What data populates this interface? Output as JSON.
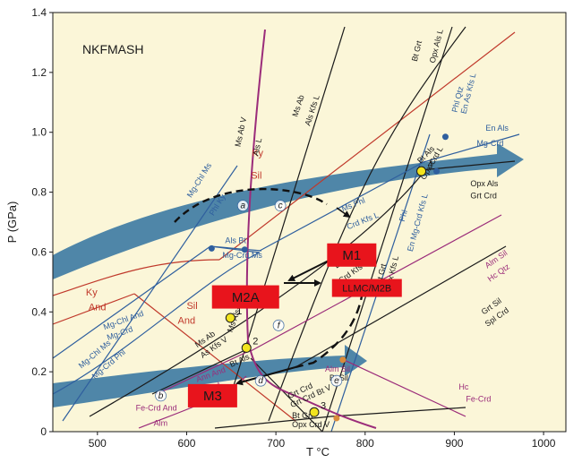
{
  "chart_data": {
    "type": "line",
    "title": "NKFMASH",
    "xlabel": "T °C",
    "ylabel": "P (GPa)",
    "xlim": [
      450,
      1025
    ],
    "ylim": [
      0,
      1.4
    ],
    "x_ticks": [
      "500",
      "600",
      "700",
      "800",
      "900",
      "1000"
    ],
    "y_ticks": [
      "0",
      "0.2",
      "0.4",
      "0.6",
      "0.8",
      "1.0",
      "1.2",
      "1.4"
    ],
    "grid": false,
    "colors": {
      "background": "#fbf6d8",
      "black": "#1a1a1a",
      "blue": "#2f5f9e",
      "red": "#c0392b",
      "magenta": "#9b2c7a",
      "arrow_band": "#4f86a8",
      "box": "#e8141c",
      "marker": "#f2e41e"
    },
    "fields": [
      {
        "name": "Ky",
        "color": "#c0392b",
        "x": 673,
        "y": 0.92
      },
      {
        "name": "Sil",
        "color": "#c0392b",
        "x": 672,
        "y": 0.845
      },
      {
        "name": "Ky",
        "color": "#c0392b",
        "x": 487,
        "y": 0.455
      },
      {
        "name": "And",
        "color": "#c0392b",
        "x": 490,
        "y": 0.405
      },
      {
        "name": "Sil",
        "color": "#c0392b",
        "x": 600,
        "y": 0.41
      },
      {
        "name": "And",
        "color": "#c0392b",
        "x": 590,
        "y": 0.36
      }
    ],
    "reactions": [
      {
        "label": "Bt Grt",
        "color": "#1a1a1a",
        "x": 858,
        "y": 1.235,
        "angle": -76
      },
      {
        "label": "Opx Als L",
        "color": "#1a1a1a",
        "x": 878,
        "y": 1.23,
        "angle": -76
      },
      {
        "label": "Phl Qtz",
        "color": "#2f5f9e",
        "x": 903,
        "y": 1.065,
        "angle": -76
      },
      {
        "label": "En As Kfs L",
        "color": "#2f5f9e",
        "x": 913,
        "y": 1.06,
        "angle": -76
      },
      {
        "label": "En Als",
        "color": "#2f5f9e",
        "x": 935,
        "y": 1.005,
        "angle": 0
      },
      {
        "label": "Mg-Crd",
        "color": "#2f5f9e",
        "x": 925,
        "y": 0.955,
        "angle": 0
      },
      {
        "label": "Opx Als",
        "color": "#1a1a1a",
        "x": 918,
        "y": 0.82,
        "angle": 0
      },
      {
        "label": "Grt Crd",
        "color": "#1a1a1a",
        "x": 918,
        "y": 0.78,
        "angle": 0
      },
      {
        "label": "Bt Als",
        "color": "#1a1a1a",
        "x": 862,
        "y": 0.895,
        "angle": -45
      },
      {
        "label": "Opx Crd L",
        "color": "#1a1a1a",
        "x": 867,
        "y": 0.84,
        "angle": -60
      },
      {
        "label": "Ms Ab",
        "color": "#1a1a1a",
        "x": 724,
        "y": 1.05,
        "angle": -72
      },
      {
        "label": "Als Kfs L",
        "color": "#1a1a1a",
        "x": 738,
        "y": 1.02,
        "angle": -72
      },
      {
        "label": "Ms Ab V",
        "color": "#1a1a1a",
        "x": 660,
        "y": 0.95,
        "angle": -78
      },
      {
        "label": "Als L",
        "color": "#1a1a1a",
        "x": 680,
        "y": 0.92,
        "angle": -78
      },
      {
        "label": "Ms Phl",
        "color": "#2f5f9e",
        "x": 775,
        "y": 0.735,
        "angle": -22
      },
      {
        "label": "Crd Kfs L",
        "color": "#2f5f9e",
        "x": 781,
        "y": 0.675,
        "angle": -22
      },
      {
        "label": "Mg-Chl Ms",
        "color": "#2f5f9e",
        "x": 605,
        "y": 0.78,
        "angle": -58
      },
      {
        "label": "Phl Ky",
        "color": "#2f5f9e",
        "x": 630,
        "y": 0.72,
        "angle": -58
      },
      {
        "label": "Als Bt",
        "color": "#2f5f9e",
        "x": 643,
        "y": 0.63,
        "angle": 0
      },
      {
        "label": "Mg-Crd Ms",
        "color": "#2f5f9e",
        "x": 640,
        "y": 0.58,
        "angle": 0
      },
      {
        "label": "Bt Sil",
        "color": "#1a1a1a",
        "x": 768,
        "y": 0.545,
        "angle": -35
      },
      {
        "label": "Crd Kfs L",
        "color": "#1a1a1a",
        "x": 773,
        "y": 0.495,
        "angle": -35
      },
      {
        "label": "Phl",
        "color": "#2f5f9e",
        "x": 844,
        "y": 0.7,
        "angle": -75
      },
      {
        "label": "En Mg-Crd Kfs L",
        "color": "#2f5f9e",
        "x": 853,
        "y": 0.6,
        "angle": -75
      },
      {
        "label": "Bt Grt",
        "color": "#1a1a1a",
        "x": 818,
        "y": 0.49,
        "angle": -76
      },
      {
        "label": "Opx Kfs L",
        "color": "#1a1a1a",
        "x": 828,
        "y": 0.47,
        "angle": -76
      },
      {
        "label": "Alm Sil",
        "color": "#9b2c7a",
        "x": 937,
        "y": 0.545,
        "angle": -35
      },
      {
        "label": "Hc Qtz",
        "color": "#9b2c7a",
        "x": 940,
        "y": 0.5,
        "angle": -35
      },
      {
        "label": "Grt Sil",
        "color": "#1a1a1a",
        "x": 933,
        "y": 0.39,
        "angle": -35
      },
      {
        "label": "Spl Crd",
        "color": "#1a1a1a",
        "x": 937,
        "y": 0.35,
        "angle": -35
      },
      {
        "label": "Mg-Chl And",
        "color": "#2f5f9e",
        "x": 508,
        "y": 0.34,
        "angle": -20
      },
      {
        "label": "Mg-Crd",
        "color": "#2f5f9e",
        "x": 512,
        "y": 0.305,
        "angle": -20
      },
      {
        "label": "Mg-Chl Ms",
        "color": "#2f5f9e",
        "x": 482,
        "y": 0.21,
        "angle": -40
      },
      {
        "label": "Mg-Crd Phl",
        "color": "#2f5f9e",
        "x": 497,
        "y": 0.175,
        "angle": -40
      },
      {
        "label": "Ms Ab",
        "color": "#1a1a1a",
        "x": 612,
        "y": 0.28,
        "angle": -35
      },
      {
        "label": "As Kfs V",
        "color": "#1a1a1a",
        "x": 618,
        "y": 0.245,
        "angle": -35
      },
      {
        "label": "Ms Als",
        "color": "#1a1a1a",
        "x": 651,
        "y": 0.33,
        "angle": -70
      },
      {
        "label": "Bt Als",
        "color": "#1a1a1a",
        "x": 650,
        "y": 0.215,
        "angle": -25
      },
      {
        "label": "Ann And",
        "color": "#9b2c7a",
        "x": 612,
        "y": 0.165,
        "angle": -20
      },
      {
        "label": "Fe-Crd",
        "color": "#9b2c7a",
        "x": 612,
        "y": 0.12,
        "angle": -20
      },
      {
        "label": "Alm Sil",
        "color": "#9b2c7a",
        "x": 755,
        "y": 0.2,
        "angle": 0
      },
      {
        "label": "Bt Sil",
        "color": "#1a1a1a",
        "x": 760,
        "y": 0.17,
        "angle": 0
      },
      {
        "label": "Grt Crd",
        "color": "#1a1a1a",
        "x": 715,
        "y": 0.11,
        "angle": -25
      },
      {
        "label": "Grt Crd Bt V",
        "color": "#1a1a1a",
        "x": 718,
        "y": 0.08,
        "angle": -25
      },
      {
        "label": "Fe-Crd And",
        "color": "#9b2c7a",
        "x": 543,
        "y": 0.07,
        "angle": 0
      },
      {
        "label": "Alm",
        "color": "#9b2c7a",
        "x": 563,
        "y": 0.02,
        "angle": 0
      },
      {
        "label": "Bt Grt",
        "color": "#1a1a1a",
        "x": 718,
        "y": 0.045,
        "angle": 0
      },
      {
        "label": "Opx Crd V",
        "color": "#1a1a1a",
        "x": 718,
        "y": 0.015,
        "angle": 0
      },
      {
        "label": "Hc",
        "color": "#9b2c7a",
        "x": 905,
        "y": 0.14,
        "angle": 0
      },
      {
        "label": "Fe-Crd",
        "color": "#9b2c7a",
        "x": 913,
        "y": 0.1,
        "angle": 0
      }
    ],
    "invariant_points": [
      {
        "label": "1",
        "x": 649,
        "y": 0.38
      },
      {
        "label": "2",
        "x": 667,
        "y": 0.28
      },
      {
        "label": "3",
        "x": 743,
        "y": 0.065
      },
      {
        "label": "4",
        "x": 863,
        "y": 0.87
      }
    ],
    "point_labels": [
      {
        "label": "a",
        "x": 663,
        "y": 0.755
      },
      {
        "label": "b",
        "x": 571,
        "y": 0.12
      },
      {
        "label": "c",
        "x": 705,
        "y": 0.755
      },
      {
        "label": "d",
        "x": 683,
        "y": 0.17
      },
      {
        "label": "e",
        "x": 768,
        "y": 0.17
      },
      {
        "label": "f",
        "x": 703,
        "y": 0.355
      }
    ],
    "stages": [
      {
        "label": "M1",
        "x": 785,
        "y": 0.59
      },
      {
        "label": "M2A",
        "x": 666,
        "y": 0.45
      },
      {
        "label": "LLMC/M2B",
        "x": 802,
        "y": 0.48
      },
      {
        "label": "M3",
        "x": 629,
        "y": 0.12
      }
    ]
  }
}
